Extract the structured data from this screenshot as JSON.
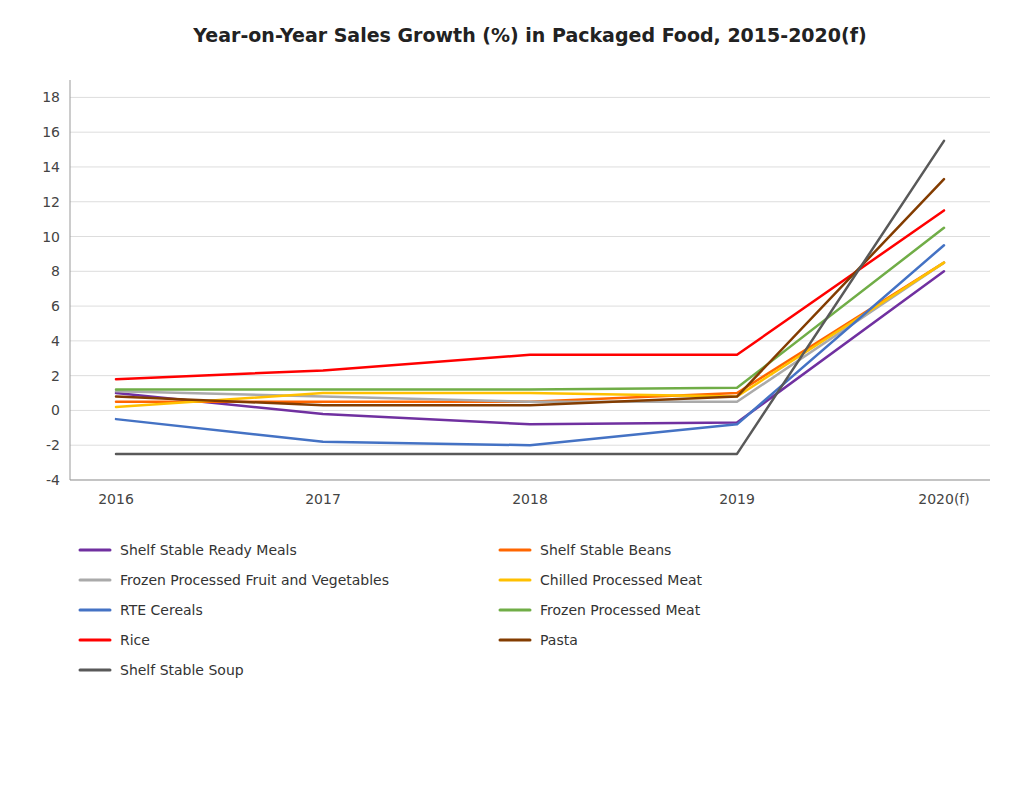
{
  "chart_data": {
    "type": "line",
    "title": "Year-on-Year Sales Growth (%) in Packaged Food, 2015-2020(f)",
    "categories": [
      "2016",
      "2017",
      "2018",
      "2019",
      "2020(f)"
    ],
    "series": [
      {
        "name": "Shelf Stable Ready Meals",
        "color": "#7030A0",
        "values": [
          1.0,
          -0.2,
          -0.8,
          -0.7,
          8.0
        ]
      },
      {
        "name": "Shelf Stable Beans",
        "color": "#FF6600",
        "values": [
          0.5,
          0.5,
          0.5,
          1.0,
          8.5
        ]
      },
      {
        "name": "Frozen Processed Fruit and Vegetables",
        "color": "#AAAAAA",
        "values": [
          1.1,
          0.8,
          0.5,
          0.5,
          8.5
        ]
      },
      {
        "name": "Chilled Processed Meat",
        "color": "#FFC000",
        "values": [
          0.2,
          1.0,
          1.0,
          0.8,
          8.5
        ]
      },
      {
        "name": "RTE Cereals",
        "color": "#4472C4",
        "values": [
          -0.5,
          -1.8,
          -2.0,
          -0.8,
          9.5
        ]
      },
      {
        "name": "Frozen Processed Meat",
        "color": "#70AD47",
        "values": [
          1.2,
          1.2,
          1.2,
          1.3,
          10.5
        ]
      },
      {
        "name": "Rice",
        "color": "#FF0000",
        "values": [
          1.8,
          2.3,
          3.2,
          3.2,
          11.5
        ]
      },
      {
        "name": "Pasta",
        "color": "#833C00",
        "values": [
          0.8,
          0.3,
          0.3,
          0.8,
          13.3
        ]
      },
      {
        "name": "Shelf Stable Soup",
        "color": "#595959",
        "values": [
          -2.5,
          -2.5,
          -2.5,
          -2.5,
          15.5
        ]
      }
    ],
    "ylim": [
      -4,
      19
    ],
    "yticks": [
      -4,
      -2,
      0,
      2,
      4,
      6,
      8,
      10,
      12,
      14,
      16,
      18
    ],
    "grid": true,
    "legend": "bottom"
  }
}
